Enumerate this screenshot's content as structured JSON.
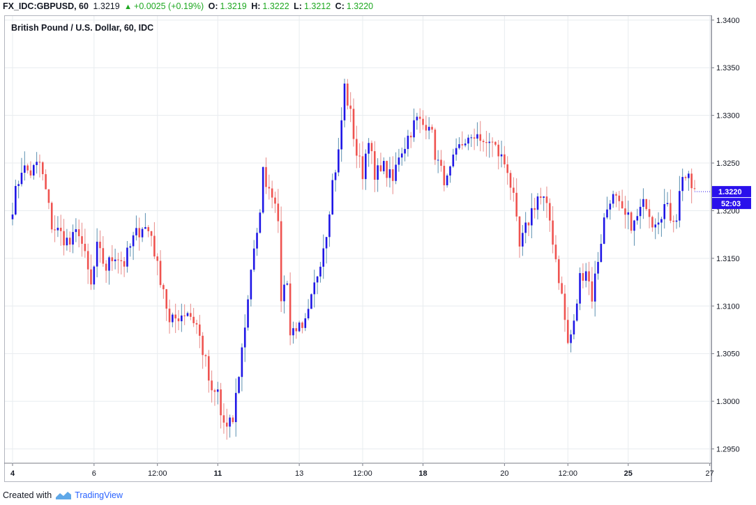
{
  "header": {
    "symbol": "FX_IDC:GBPUSD, 60",
    "last": "1.3219",
    "change_arrow": "▲",
    "change": "+0.0025 (+0.19%)",
    "o_label": "O:",
    "o_value": "1.3219",
    "h_label": "H:",
    "h_value": "1.3222",
    "l_label": "L:",
    "l_value": "1.3212",
    "c_label": "C:",
    "c_value": "1.3220"
  },
  "chart_title": "British Pound / U.S. Dollar, 60, IDC",
  "price_badge": "1.3220",
  "countdown_badge": "52:03",
  "footer": {
    "created_with": "Created with",
    "brand": "TradingView"
  },
  "colors": {
    "up": "#1e16e6",
    "down": "#ef5350",
    "grid": "#e8ecef",
    "badge": "#2a10ec",
    "accent": "#1ea821"
  },
  "chart_data": {
    "type": "candlestick",
    "title": "British Pound / U.S. Dollar, 60, IDC",
    "ylim": [
      1.2935,
      1.3405
    ],
    "y_ticks": [
      1.295,
      1.3,
      1.305,
      1.31,
      1.315,
      1.32,
      1.325,
      1.33,
      1.335,
      1.34
    ],
    "x_ticks": [
      {
        "label": "4",
        "bold": true,
        "i": 0
      },
      {
        "label": "6",
        "bold": false,
        "i": 27
      },
      {
        "label": "12:00",
        "bold": false,
        "i": 48
      },
      {
        "label": "11",
        "bold": true,
        "i": 68
      },
      {
        "label": "13",
        "bold": false,
        "i": 95
      },
      {
        "label": "12:00",
        "bold": false,
        "i": 116
      },
      {
        "label": "18",
        "bold": true,
        "i": 136
      },
      {
        "label": "20",
        "bold": false,
        "i": 163
      },
      {
        "label": "12:00",
        "bold": false,
        "i": 184
      },
      {
        "label": "25",
        "bold": true,
        "i": 204
      },
      {
        "label": "27",
        "bold": false,
        "i": 231
      }
    ],
    "anchors": [
      [
        0,
        1.3205
      ],
      [
        3,
        1.3245
      ],
      [
        6,
        1.324
      ],
      [
        9,
        1.325
      ],
      [
        11,
        1.322
      ],
      [
        13,
        1.3185
      ],
      [
        16,
        1.3175
      ],
      [
        19,
        1.3165
      ],
      [
        22,
        1.318
      ],
      [
        24,
        1.315
      ],
      [
        26,
        1.312
      ],
      [
        28,
        1.316
      ],
      [
        31,
        1.314
      ],
      [
        34,
        1.3155
      ],
      [
        37,
        1.3145
      ],
      [
        40,
        1.317
      ],
      [
        43,
        1.3185
      ],
      [
        46,
        1.3175
      ],
      [
        48,
        1.314
      ],
      [
        50,
        1.312
      ],
      [
        52,
        1.308
      ],
      [
        55,
        1.309
      ],
      [
        58,
        1.3095
      ],
      [
        61,
        1.308
      ],
      [
        64,
        1.304
      ],
      [
        66,
        1.3005
      ],
      [
        68,
        1.301
      ],
      [
        69,
        1.2985
      ],
      [
        71,
        1.297
      ],
      [
        73,
        1.298
      ],
      [
        75,
        1.303
      ],
      [
        77,
        1.308
      ],
      [
        79,
        1.314
      ],
      [
        81,
        1.317
      ],
      [
        83,
        1.324
      ],
      [
        85,
        1.3225
      ],
      [
        87,
        1.3215
      ],
      [
        88,
        1.318
      ],
      [
        89,
        1.311
      ],
      [
        91,
        1.313
      ],
      [
        92,
        1.307
      ],
      [
        94,
        1.308
      ],
      [
        96,
        1.307
      ],
      [
        98,
        1.309
      ],
      [
        100,
        1.312
      ],
      [
        102,
        1.315
      ],
      [
        104,
        1.318
      ],
      [
        106,
        1.323
      ],
      [
        108,
        1.326
      ],
      [
        110,
        1.333
      ],
      [
        112,
        1.33
      ],
      [
        114,
        1.326
      ],
      [
        116,
        1.324
      ],
      [
        118,
        1.328
      ],
      [
        120,
        1.323
      ],
      [
        122,
        1.325
      ],
      [
        124,
        1.324
      ],
      [
        126,
        1.323
      ],
      [
        128,
        1.326
      ],
      [
        130,
        1.327
      ],
      [
        132,
        1.3285
      ],
      [
        134,
        1.3295
      ],
      [
        136,
        1.329
      ],
      [
        138,
        1.3295
      ],
      [
        140,
        1.326
      ],
      [
        142,
        1.324
      ],
      [
        144,
        1.323
      ],
      [
        146,
        1.325
      ],
      [
        148,
        1.3265
      ],
      [
        150,
        1.3275
      ],
      [
        152,
        1.327
      ],
      [
        154,
        1.3285
      ],
      [
        156,
        1.3265
      ],
      [
        158,
        1.3275
      ],
      [
        160,
        1.3265
      ],
      [
        162,
        1.3255
      ],
      [
        164,
        1.3245
      ],
      [
        166,
        1.321
      ],
      [
        168,
        1.316
      ],
      [
        170,
        1.318
      ],
      [
        172,
        1.32
      ],
      [
        174,
        1.3215
      ],
      [
        176,
        1.321
      ],
      [
        178,
        1.319
      ],
      [
        180,
        1.315
      ],
      [
        182,
        1.311
      ],
      [
        184,
        1.306
      ],
      [
        186,
        1.308
      ],
      [
        188,
        1.313
      ],
      [
        190,
        1.314
      ],
      [
        192,
        1.311
      ],
      [
        194,
        1.315
      ],
      [
        196,
        1.319
      ],
      [
        198,
        1.3215
      ],
      [
        200,
        1.321
      ],
      [
        202,
        1.3195
      ],
      [
        204,
        1.319
      ],
      [
        206,
        1.3185
      ],
      [
        208,
        1.32
      ],
      [
        210,
        1.321
      ],
      [
        212,
        1.319
      ],
      [
        214,
        1.3195
      ],
      [
        216,
        1.3205
      ],
      [
        218,
        1.3195
      ],
      [
        220,
        1.3195
      ],
      [
        222,
        1.324
      ],
      [
        224,
        1.323
      ],
      [
        226,
        1.322
      ]
    ],
    "n_bars": 227
  }
}
